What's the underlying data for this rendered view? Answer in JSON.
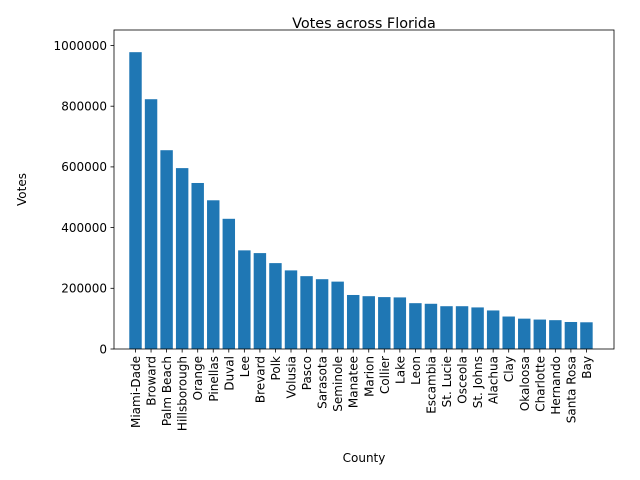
{
  "chart_data": {
    "type": "bar",
    "title": "Votes across Florida",
    "xlabel": "County",
    "ylabel": "Votes",
    "ylim": [
      0,
      1000000
    ],
    "yticks": [
      0,
      200000,
      400000,
      600000,
      800000,
      1000000
    ],
    "ytick_labels": [
      "0",
      "200000",
      "400000",
      "600000",
      "800000",
      "1000000"
    ],
    "grid": false,
    "bar_color": "#1f77b4",
    "categories": [
      "Miami-Dade",
      "Broward",
      "Palm Beach",
      "Hillsborough",
      "Orange",
      "Pinellas",
      "Duval",
      "Lee",
      "Brevard",
      "Polk",
      "Volusia",
      "Pasco",
      "Sarasota",
      "Seminole",
      "Manatee",
      "Marion",
      "Collier",
      "Lake",
      "Leon",
      "Escambia",
      "St. Lucie",
      "Osceola",
      "St. Johns",
      "Alachua",
      "Clay",
      "Okaloosa",
      "Charlotte",
      "Hernando",
      "Santa Rosa",
      "Bay"
    ],
    "values": [
      978000,
      823000,
      655000,
      596000,
      547000,
      490000,
      429000,
      325000,
      316000,
      283000,
      259000,
      240000,
      230000,
      222000,
      178000,
      174000,
      171000,
      170000,
      151000,
      149000,
      141000,
      141000,
      137000,
      127000,
      107000,
      100000,
      97000,
      95000,
      89000,
      88000
    ]
  }
}
